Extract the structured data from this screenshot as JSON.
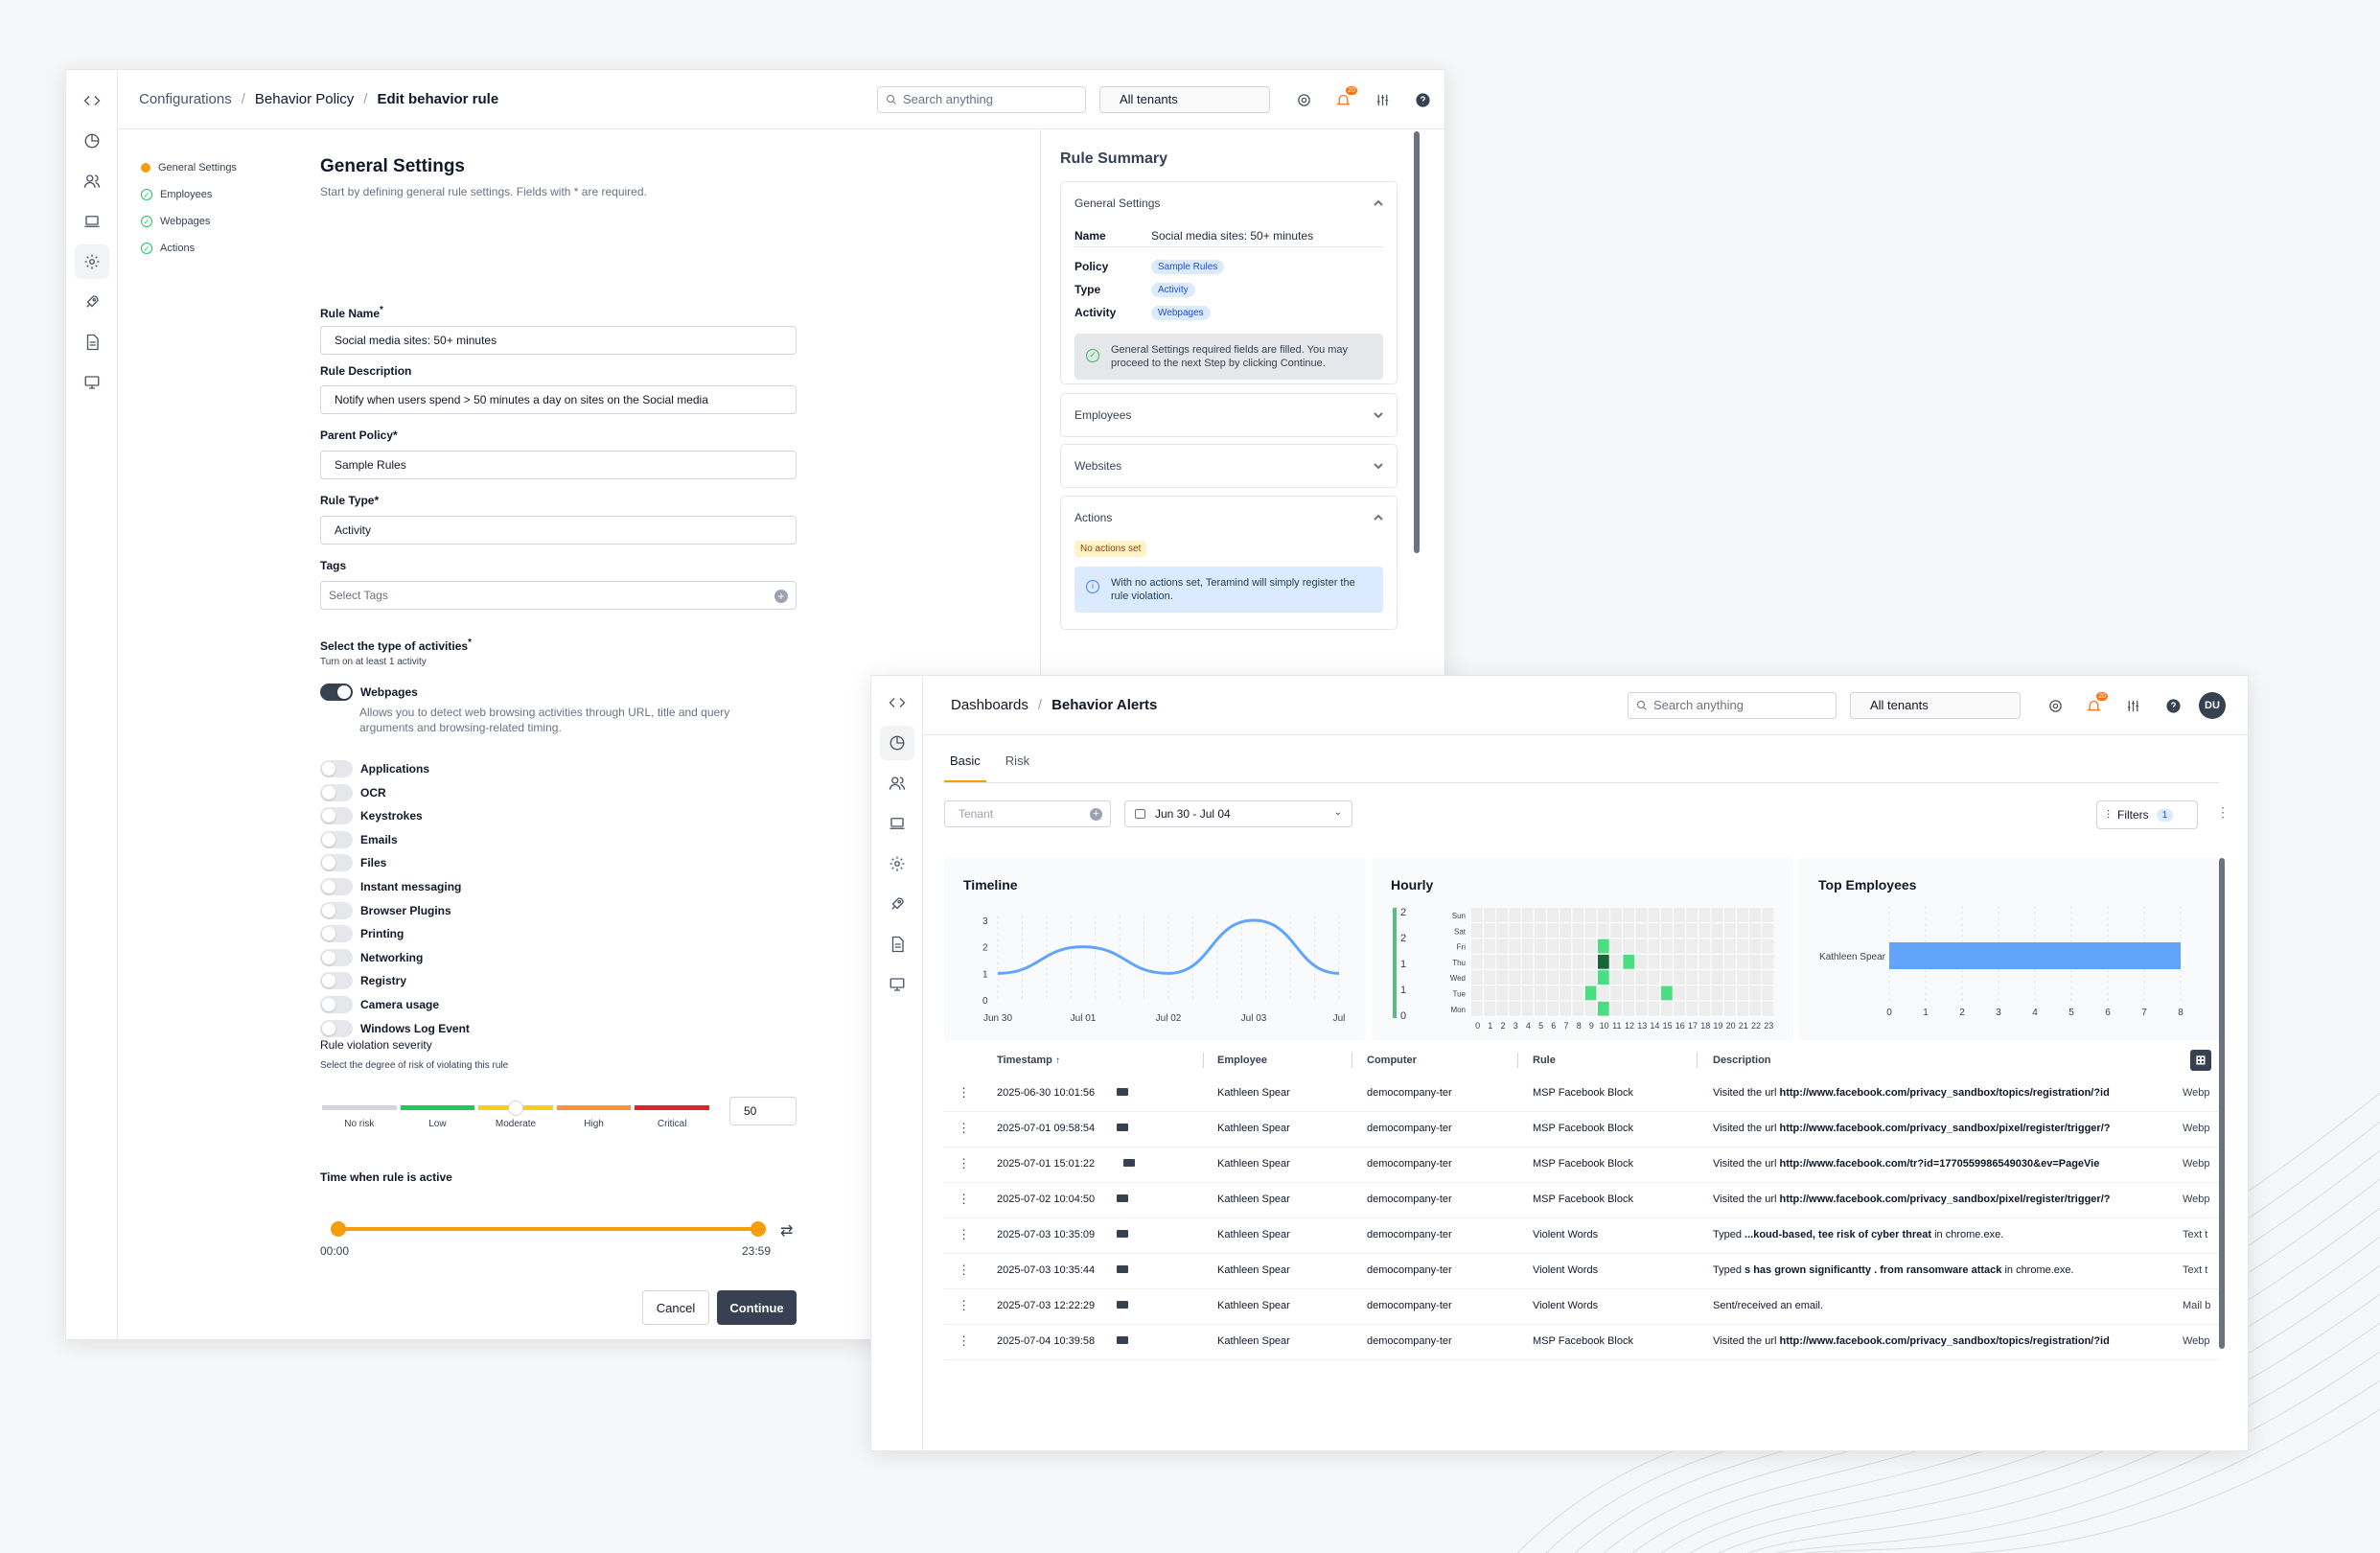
{
  "editor": {
    "breadcrumb": [
      "Configurations",
      "Behavior Policy",
      "Edit behavior rule"
    ],
    "search_placeholder": "Search anything",
    "tenant": "All tenants",
    "notif_count": "20",
    "avatar": "DU",
    "steps": [
      {
        "label": "General Settings",
        "state": "current"
      },
      {
        "label": "Employees",
        "state": "done"
      },
      {
        "label": "Webpages",
        "state": "done"
      },
      {
        "label": "Actions",
        "state": "done"
      }
    ],
    "title": "General Settings",
    "subtitle": "Start by defining general rule settings. Fields with * are required.",
    "rule_name_label": "Rule Name",
    "rule_name_value": "Social media sites: 50+ minutes",
    "rule_desc_label": "Rule Description",
    "rule_desc_value": "Notify when users spend > 50 minutes a day on sites on the Social media",
    "parent_label": "Parent Policy*",
    "parent_value": "Sample Rules",
    "type_label": "Rule Type*",
    "type_value": "Activity",
    "tags_label": "Tags",
    "tags_placeholder": "Select Tags",
    "activities_label": "Select the type of activities",
    "activities_sub": "Turn on at least 1 activity",
    "webpages_label": "Webpages",
    "webpages_desc": "Allows you to detect web browsing activities through URL, title and query arguments and browsing-related timing.",
    "activities": [
      "Applications",
      "OCR",
      "Keystrokes",
      "Emails",
      "Files",
      "Instant messaging",
      "Browser Plugins",
      "Printing",
      "Networking",
      "Registry",
      "Camera usage",
      "Windows Log Event"
    ],
    "severity_label": "Rule violation severity",
    "severity_sub": "Select the degree of risk of violating this rule",
    "severity_levels": [
      "No risk",
      "Low",
      "Moderate",
      "High",
      "Critical"
    ],
    "severity_value": "50",
    "severity_colors": [
      "#d1d5db",
      "#22c55e",
      "#facc15",
      "#fb923c",
      "#dc2626"
    ],
    "time_label": "Time when rule is active",
    "time_start": "00:00",
    "time_end": "23:59",
    "cancel": "Cancel",
    "continue": "Continue",
    "accent": "#f59e0b"
  },
  "summary": {
    "title": "Rule Summary",
    "general": "General Settings",
    "name_key": "Name",
    "name_val": "Social media sites: 50+ minutes",
    "policy_key": "Policy",
    "policy_val": "Sample Rules",
    "type_key": "Type",
    "type_val": "Activity",
    "activity_key": "Activity",
    "activity_val": "Webpages",
    "filled_msg": "General Settings required fields are filled. You may proceed to the next Step by clicking Continue.",
    "employees": "Employees",
    "websites": "Websites",
    "actions": "Actions",
    "no_actions": "No actions set",
    "no_actions_msg": "With no actions set, Teramind will simply register the rule violation."
  },
  "dashboard": {
    "breadcrumb": [
      "Dashboards",
      "Behavior Alerts"
    ],
    "search_placeholder": "Search anything",
    "tenant": "All tenants",
    "notif_count": "20",
    "avatar": "DU",
    "tabs": [
      "Basic",
      "Risk"
    ],
    "tenant_filter": "Tenant",
    "date_range": "Jun 30 - Jul 04",
    "filters": "Filters",
    "filters_count": "1",
    "timeline_title": "Timeline",
    "hourly_title": "Hourly",
    "top_title": "Top Employees",
    "columns": [
      "Timestamp",
      "Employee",
      "Computer",
      "Rule",
      "Description"
    ],
    "rows": [
      {
        "ts": "2025-06-30 10:01:56",
        "emp": "Kathleen Spear",
        "comp": "democompany-ter",
        "rule": "MSP Facebook Block",
        "pre": "Visited the url ",
        "bold": "http://www.facebook.com/privacy_sandbox/topics/registration/?id",
        "post": "",
        "extra": "Webp"
      },
      {
        "ts": "2025-07-01 09:58:54",
        "emp": "Kathleen Spear",
        "comp": "democompany-ter",
        "rule": "MSP Facebook Block",
        "pre": "Visited the url ",
        "bold": "http://www.facebook.com/privacy_sandbox/pixel/register/trigger/?",
        "post": "",
        "extra": "Webp"
      },
      {
        "ts": "2025-07-01 15:01:22",
        "emp": "Kathleen Spear",
        "comp": "democompany-ter",
        "rule": "MSP Facebook Block",
        "pre": "Visited the url ",
        "bold": "http://www.facebook.com/tr?id=1770559986549030&ev=PageVie",
        "post": "",
        "extra": "Webp"
      },
      {
        "ts": "2025-07-02 10:04:50",
        "emp": "Kathleen Spear",
        "comp": "democompany-ter",
        "rule": "MSP Facebook Block",
        "pre": "Visited the url ",
        "bold": "http://www.facebook.com/privacy_sandbox/pixel/register/trigger/?",
        "post": "",
        "extra": "Webp"
      },
      {
        "ts": "2025-07-03 10:35:09",
        "emp": "Kathleen Spear",
        "comp": "democompany-ter",
        "rule": "Violent Words",
        "pre": "Typed ",
        "bold": "...koud-based, tee risk of cyber threat",
        "post": " in chrome.exe.",
        "extra": "Text t"
      },
      {
        "ts": "2025-07-03 10:35:44",
        "emp": "Kathleen Spear",
        "comp": "democompany-ter",
        "rule": "Violent Words",
        "pre": "Typed ",
        "bold": "s has grown significantty . from ransomware attack",
        "post": " in chrome.exe.",
        "extra": "Text t"
      },
      {
        "ts": "2025-07-03 12:22:29",
        "emp": "Kathleen Spear",
        "comp": "democompany-ter",
        "rule": "Violent Words",
        "pre": "Sent/received an email.",
        "bold": "",
        "post": "",
        "extra": "Mail b"
      },
      {
        "ts": "2025-07-04 10:39:58",
        "emp": "Kathleen Spear",
        "comp": "democompany-ter",
        "rule": "MSP Facebook Block",
        "pre": "Visited the url ",
        "bold": "http://www.facebook.com/privacy_sandbox/topics/registration/?id",
        "post": "",
        "extra": "Webp"
      }
    ]
  },
  "chart_data": [
    {
      "type": "line",
      "title": "Timeline",
      "x": [
        "Jun 30",
        "Jul 01",
        "Jul 02",
        "Jul 03",
        "Jul"
      ],
      "y_ticks": [
        0,
        1,
        2,
        3
      ],
      "series": [
        {
          "values": [
            1,
            2,
            1,
            3,
            1
          ]
        }
      ],
      "color": "#60a5fa"
    },
    {
      "type": "heatmap",
      "title": "Hourly",
      "rows": [
        "Sun",
        "Sat",
        "Fri",
        "Thu",
        "Wed",
        "Tue",
        "Mon"
      ],
      "cols": [
        "0",
        "1",
        "2",
        "3",
        "4",
        "5",
        "6",
        "7",
        "8",
        "9",
        "10",
        "11",
        "12",
        "13",
        "14",
        "15",
        "16",
        "17",
        "18",
        "19",
        "20",
        "21",
        "22",
        "23"
      ],
      "legend": [
        "2",
        "2",
        "1",
        "1",
        "0"
      ],
      "cells": [
        {
          "row": "Fri",
          "col": "10",
          "value": 1
        },
        {
          "row": "Thu",
          "col": "10",
          "value": 2
        },
        {
          "row": "Thu",
          "col": "12",
          "value": 1
        },
        {
          "row": "Wed",
          "col": "10",
          "value": 1
        },
        {
          "row": "Tue",
          "col": "9",
          "value": 1
        },
        {
          "row": "Tue",
          "col": "15",
          "value": 1
        },
        {
          "row": "Mon",
          "col": "10",
          "value": 1
        }
      ]
    },
    {
      "type": "bar",
      "title": "Top Employees",
      "categories": [
        "Kathleen Spear"
      ],
      "values": [
        8
      ],
      "x_ticks": [
        0,
        1,
        2,
        3,
        4,
        5,
        6,
        7,
        8
      ],
      "color": "#60a5fa"
    }
  ]
}
